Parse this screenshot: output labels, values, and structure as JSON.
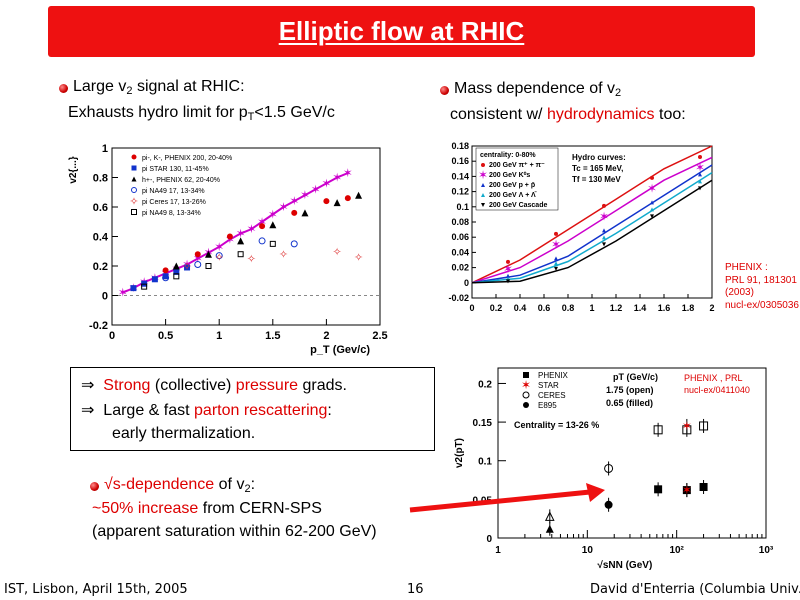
{
  "title": "Elliptic flow at RHIC",
  "left": {
    "line1_pre": "Large v",
    "line1_sub": "2",
    "line1_post": " signal at RHIC:",
    "line2_pre": "Exhausts hydro limit for p",
    "line2_sub": "T",
    "line2_post": "<1.5 GeV/c"
  },
  "right": {
    "line1_pre": "Mass dependence of v",
    "line1_sub": "2",
    "line2_pre": "consistent w/ ",
    "line2_red": "hydrodynamics",
    "line2_post": " too:"
  },
  "box": {
    "arrow": "⇒",
    "l1_red1": "Strong",
    "l1_mid": " (collective) ",
    "l1_red2": "pressure",
    "l1_post": " grads.",
    "l2_pre": "Large & fast ",
    "l2_red": "parton rescattering",
    "l2_post": ":",
    "l3": "early thermalization."
  },
  "sqrt": {
    "l1_red": "√s-dependence",
    "l1_mid": " of v",
    "l1_sub": "2",
    "l1_post": ":",
    "l2_red": "~50% increase",
    "l2_post": " from CERN-SPS",
    "l3": "(apparent saturation within 62-200 GeV)"
  },
  "ref1": [
    "PHENIX :",
    "PRL 91, 181301",
    "(2003)",
    "nucl-ex/0305036"
  ],
  "ref2": [
    "PHENIX , PRL",
    "nucl-ex/0411040"
  ],
  "footer": {
    "left": "IST, Lisbon, April 15th, 2005",
    "page": "16",
    "right": "David d'Enterria (Columbia Univ.)"
  },
  "colors": {
    "accent": "#ee1111",
    "text_red": "#dd0000",
    "hydro_magenta": "#cc00cc"
  },
  "chart_data": [
    {
      "type": "scatter",
      "xlabel": "p_T (Gev/c)",
      "ylabel": "v2{...}",
      "xlim": [
        0,
        2.5
      ],
      "ylim": [
        -0.2,
        1
      ],
      "xticks": [
        "0",
        "0.5",
        "1",
        "1.5",
        "2",
        "2.5"
      ],
      "yticks": [
        "-0.2",
        "0",
        "0.2",
        "0.4",
        "0.6",
        "0.8",
        "1"
      ],
      "legend": [
        "pi-, K-, PHENIX 200, 20-40%",
        "pi STAR 130, 11-45%",
        "h+-, PHENIX 62, 20-40%",
        "pi NA49 17, 13-34%",
        "pi Ceres 17, 13-26%",
        "pi NA49 8, 13-34%"
      ],
      "series": [
        {
          "name": "magenta",
          "x": [
            0.1,
            0.2,
            0.3,
            0.4,
            0.5,
            0.6,
            0.7,
            0.8,
            0.9,
            1.0,
            1.1,
            1.2,
            1.3,
            1.4,
            1.5,
            1.6,
            1.7,
            1.8,
            1.9,
            2.0,
            2.1,
            2.2
          ],
          "y": [
            0.02,
            0.05,
            0.09,
            0.12,
            0.15,
            0.18,
            0.21,
            0.25,
            0.29,
            0.33,
            0.38,
            0.42,
            0.45,
            0.5,
            0.55,
            0.6,
            0.64,
            0.68,
            0.72,
            0.76,
            0.8,
            0.83
          ]
        },
        {
          "name": "pi-, K-, PHENIX 200, 20-40%",
          "x": [
            0.5,
            0.8,
            1.1,
            1.4,
            1.7,
            2.0,
            2.2
          ],
          "y": [
            0.17,
            0.28,
            0.4,
            0.47,
            0.56,
            0.64,
            0.66
          ]
        },
        {
          "name": "pi STAR 130, 11-45%",
          "x": [
            0.2,
            0.3,
            0.4,
            0.5,
            0.6,
            0.7
          ],
          "y": [
            0.05,
            0.08,
            0.11,
            0.13,
            0.16,
            0.19
          ]
        },
        {
          "name": "h+-, PHENIX 62, 20-40%",
          "x": [
            0.6,
            0.9,
            1.2,
            1.5,
            1.8,
            2.1,
            2.3
          ],
          "y": [
            0.2,
            0.28,
            0.37,
            0.48,
            0.56,
            0.63,
            0.68
          ]
        },
        {
          "name": "pi NA49 17, 13-34%",
          "x": [
            0.5,
            0.8,
            1.0,
            1.4,
            1.7
          ],
          "y": [
            0.12,
            0.21,
            0.27,
            0.37,
            0.35
          ]
        },
        {
          "name": "pi Ceres 17, 13-26%",
          "x": [
            0.7,
            1.0,
            1.3,
            1.6,
            2.1,
            2.3
          ],
          "y": [
            0.2,
            0.26,
            0.25,
            0.28,
            0.3,
            0.26
          ]
        },
        {
          "name": "pi NA49 8, 13-34%",
          "x": [
            0.3,
            0.6,
            0.9,
            1.2,
            1.5
          ],
          "y": [
            0.06,
            0.13,
            0.2,
            0.28,
            0.35
          ]
        }
      ]
    },
    {
      "type": "line",
      "title_lines": [
        "centrality: 0-80%"
      ],
      "legend": [
        "200 GeV π⁺ + π⁻",
        "200 GeV K⁰s",
        "200 GeV p + p̄",
        "200 GeV Λ + Λ̄",
        "200 GeV Cascade"
      ],
      "annotations": [
        "Hydro curves:",
        "Tc = 165 MeV,",
        "Tf = 130 MeV"
      ],
      "xlim": [
        0,
        2
      ],
      "ylim": [
        -0.02,
        0.18
      ],
      "xticks": [
        "0",
        "0.2",
        "0.4",
        "0.6",
        "0.8",
        "1",
        "1.2",
        "1.4",
        "1.6",
        "1.8",
        "2"
      ],
      "yticks": [
        "-0.02",
        "0",
        "0.02",
        "0.04",
        "0.06",
        "0.08",
        "0.1",
        "0.12",
        "0.14",
        "0.16",
        "0.18"
      ],
      "series": [
        {
          "name": "200 GeV π⁺ + π⁻",
          "x": [
            0,
            0.4,
            0.8,
            1.2,
            1.6,
            2.0
          ],
          "y": [
            0,
            0.03,
            0.07,
            0.11,
            0.15,
            0.18
          ]
        },
        {
          "name": "200 GeV K⁰s",
          "x": [
            0,
            0.4,
            0.8,
            1.2,
            1.6,
            2.0
          ],
          "y": [
            0,
            0.02,
            0.055,
            0.095,
            0.135,
            0.165
          ]
        },
        {
          "name": "200 GeV p + p̄",
          "x": [
            0,
            0.4,
            0.8,
            1.2,
            1.6,
            2.0
          ],
          "y": [
            0,
            0.01,
            0.035,
            0.075,
            0.115,
            0.155
          ]
        },
        {
          "name": "200 GeV Λ + Λ̄",
          "x": [
            0,
            0.4,
            0.8,
            1.2,
            1.6,
            2.0
          ],
          "y": [
            0,
            0.006,
            0.028,
            0.065,
            0.105,
            0.145
          ]
        },
        {
          "name": "200 GeV Cascade",
          "x": [
            0,
            0.4,
            0.8,
            1.2,
            1.6,
            2.0
          ],
          "y": [
            0,
            0.002,
            0.02,
            0.055,
            0.095,
            0.135
          ]
        }
      ]
    },
    {
      "type": "scatter",
      "xlabel": "√sNN (GeV)",
      "ylabel": "v2(pT)",
      "xscale": "log",
      "xlim": [
        1,
        1000
      ],
      "ylim": [
        0,
        0.22
      ],
      "xticks": [
        "1",
        "10",
        "10²",
        "10³"
      ],
      "yticks": [
        "0",
        "0.05",
        "0.1",
        "0.15",
        "0.2"
      ],
      "legend": [
        "PHENIX",
        "STAR",
        "CERES",
        "E895"
      ],
      "annotations": [
        "pT (GeV/c)",
        "1.75 (open)",
        "0.65 (filled)",
        "Centrality = 13-26 %"
      ],
      "series": [
        {
          "name": "PHENIX",
          "x": [
            62,
            130,
            200,
            62,
            130,
            200
          ],
          "y": [
            0.14,
            0.14,
            0.145,
            0.063,
            0.062,
            0.066
          ]
        },
        {
          "name": "STAR",
          "x": [
            130,
            130
          ],
          "y": [
            0.145,
            0.062
          ]
        },
        {
          "name": "CERES",
          "x": [
            17.3,
            17.3
          ],
          "y": [
            0.09,
            0.043
          ]
        },
        {
          "name": "E895",
          "x": [
            3.8,
            3.8
          ],
          "y": [
            0.028,
            0.012
          ]
        }
      ]
    }
  ]
}
